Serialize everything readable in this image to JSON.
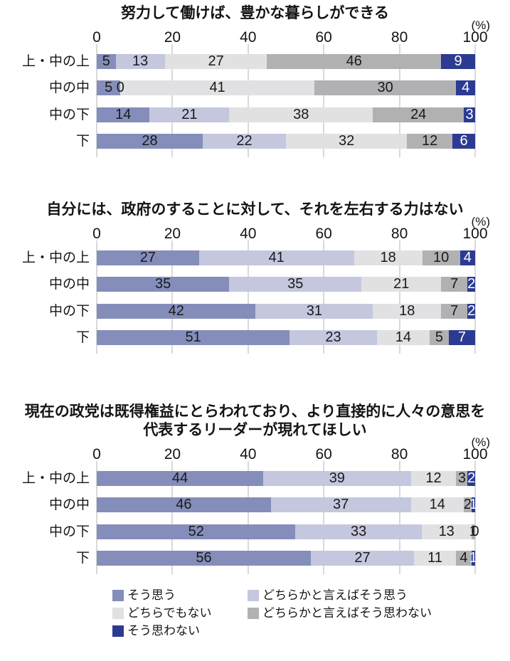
{
  "figure": {
    "background": "#ffffff",
    "unit_label": "(%)",
    "categories": [
      "上・中の上",
      "中の中",
      "中の下",
      "下"
    ]
  },
  "colors": {
    "agree": "#858dba",
    "somewhat_agree": "#c4c7dd",
    "neither": "#e1e1e3",
    "somewhat_disagree": "#b1b1b3",
    "disagree": "#2c3b91",
    "gridline": "#d9d9d9",
    "label_on_dark": "#ffffff",
    "label_default": "#1a1a1a"
  },
  "legend": {
    "position": "bottom",
    "items": [
      {
        "label": "そう思う",
        "color": "#858dba"
      },
      {
        "label": "どちらかと言えばそう思う",
        "color": "#c4c7dd"
      },
      {
        "label": "どちらでもない",
        "color": "#e1e1e3"
      },
      {
        "label": "どちらかと言えばそう思わない",
        "color": "#b1b1b3"
      },
      {
        "label": "そう思わない",
        "color": "#2c3b91"
      }
    ]
  },
  "chart_data": [
    {
      "type": "bar",
      "stacked": true,
      "orientation": "horizontal",
      "title": "努力して働けば、豊かな暮らしができる",
      "title_lines": [
        "努力して働けば、豊かな暮らしができる"
      ],
      "unit": "(%)",
      "xlim": [
        0,
        100
      ],
      "x_ticks": [
        0,
        20,
        40,
        60,
        80,
        100
      ],
      "grid": true,
      "categories": [
        "上・中の上",
        "中の中",
        "中の下",
        "下"
      ],
      "series": [
        {
          "name": "そう思う",
          "color": "#858dba",
          "values": [
            5,
            5,
            14,
            28
          ]
        },
        {
          "name": "どちらかと言えばそう思う",
          "color": "#c4c7dd",
          "values": [
            13,
            0,
            21,
            22
          ]
        },
        {
          "name": "どちらでもない",
          "color": "#e1e1e3",
          "values": [
            27,
            41,
            38,
            32
          ]
        },
        {
          "name": "どちらかと言えばそう思わない",
          "color": "#b1b1b3",
          "values": [
            46,
            30,
            24,
            12
          ]
        },
        {
          "name": "そう思わない",
          "color": "#2c3b91",
          "values": [
            9,
            4,
            3,
            6
          ]
        }
      ]
    },
    {
      "type": "bar",
      "stacked": true,
      "orientation": "horizontal",
      "title": "自分には、政府のすることに対して、それを左右する力はない",
      "title_lines": [
        "自分には、政府のすることに対して、それを左右する力はない"
      ],
      "unit": "(%)",
      "xlim": [
        0,
        100
      ],
      "x_ticks": [
        0,
        20,
        40,
        60,
        80,
        100
      ],
      "grid": true,
      "categories": [
        "上・中の上",
        "中の中",
        "中の下",
        "下"
      ],
      "series": [
        {
          "name": "そう思う",
          "color": "#858dba",
          "values": [
            27,
            35,
            42,
            51
          ]
        },
        {
          "name": "どちらかと言えばそう思う",
          "color": "#c4c7dd",
          "values": [
            41,
            35,
            31,
            23
          ]
        },
        {
          "name": "どちらでもない",
          "color": "#e1e1e3",
          "values": [
            18,
            21,
            18,
            14
          ]
        },
        {
          "name": "どちらかと言えばそう思わない",
          "color": "#b1b1b3",
          "values": [
            10,
            7,
            7,
            5
          ]
        },
        {
          "name": "そう思わない",
          "color": "#2c3b91",
          "values": [
            4,
            2,
            2,
            7
          ]
        }
      ]
    },
    {
      "type": "bar",
      "stacked": true,
      "orientation": "horizontal",
      "title": "現在の政党は既得権益にとらわれており、より直接的に人々の意思を代表するリーダーが現れてほしい",
      "title_lines": [
        "現在の政党は既得権益にとらわれており、より直接的に人々の意思を",
        "代表するリーダーが現れてほしい"
      ],
      "unit": "(%)",
      "xlim": [
        0,
        100
      ],
      "x_ticks": [
        0,
        20,
        40,
        60,
        80,
        100
      ],
      "grid": true,
      "categories": [
        "上・中の上",
        "中の中",
        "中の下",
        "下"
      ],
      "series": [
        {
          "name": "そう思う",
          "color": "#858dba",
          "values": [
            44,
            46,
            52,
            56
          ]
        },
        {
          "name": "どちらかと言えばそう思う",
          "color": "#c4c7dd",
          "values": [
            39,
            37,
            33,
            27
          ]
        },
        {
          "name": "どちらでもない",
          "color": "#e1e1e3",
          "values": [
            12,
            14,
            13,
            11
          ]
        },
        {
          "name": "どちらかと言えばそう思わない",
          "color": "#b1b1b3",
          "values": [
            3,
            2,
            1,
            4
          ]
        },
        {
          "name": "そう思わない",
          "color": "#2c3b91",
          "values": [
            2,
            1,
            0,
            1
          ]
        }
      ]
    }
  ]
}
